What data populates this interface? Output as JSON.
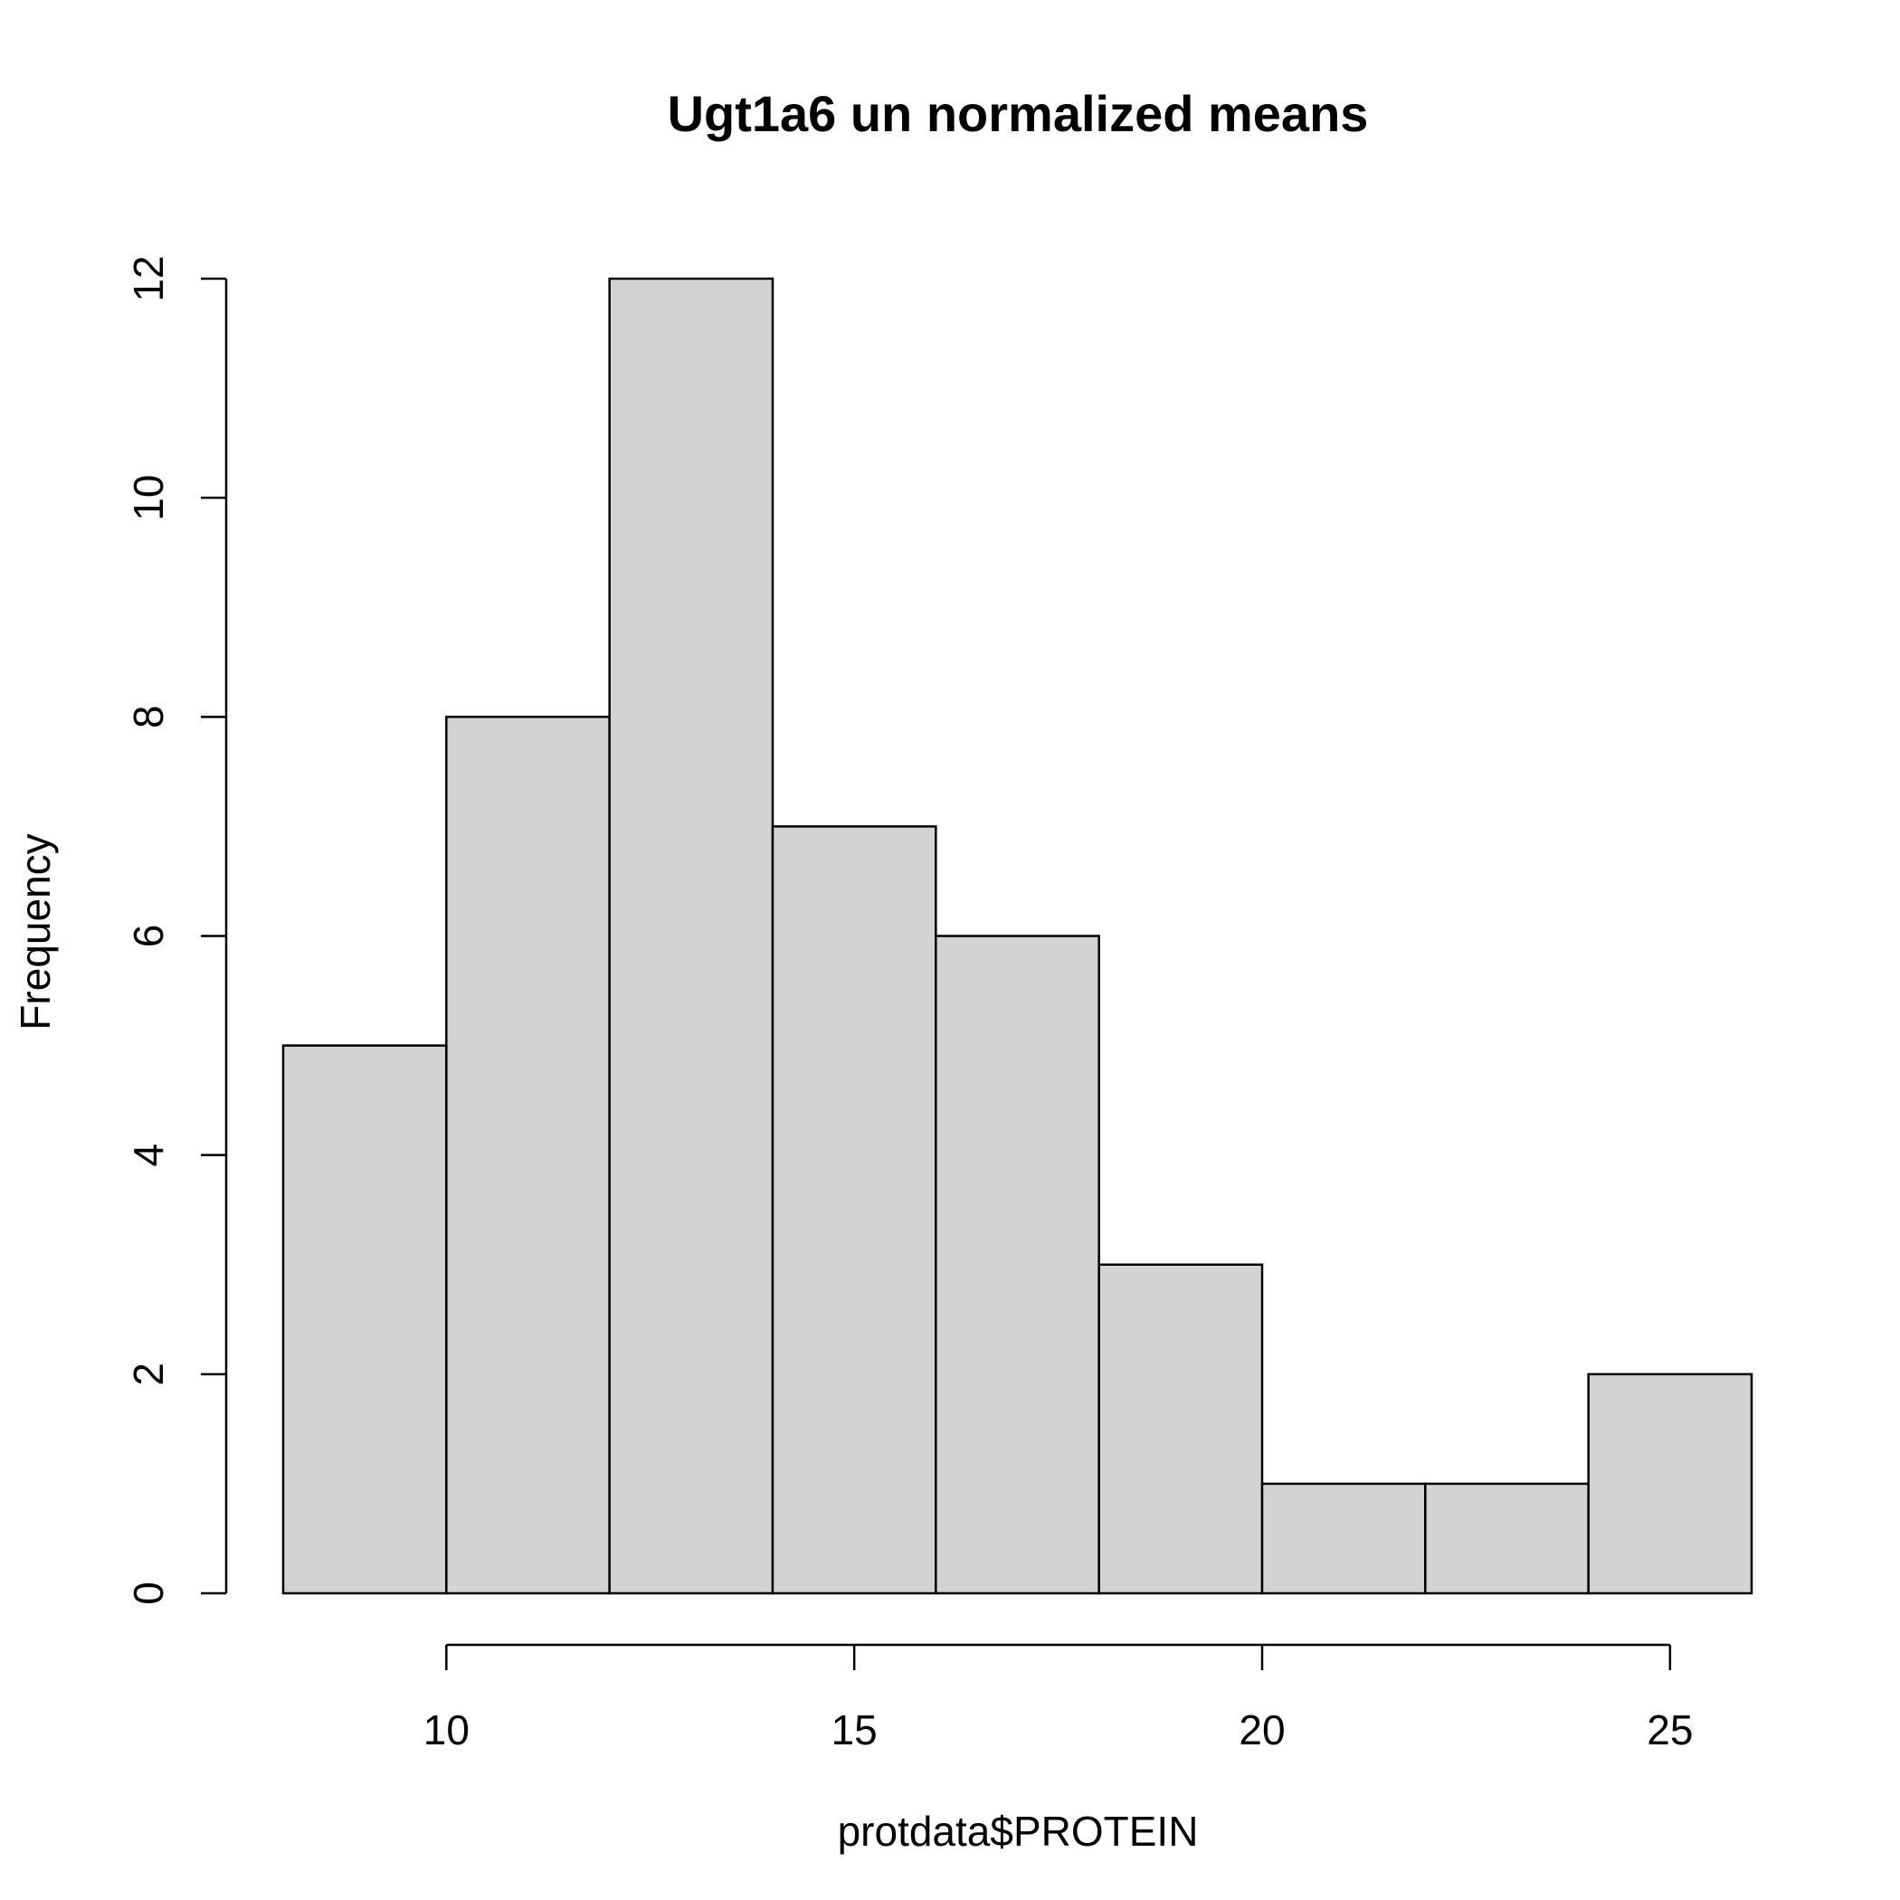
{
  "chart_data": {
    "type": "bar",
    "title": "Ugt1a6 un normalized means",
    "xlabel": "protdata$PROTEIN",
    "ylabel": "Frequency",
    "bin_edges": [
      8,
      10,
      12,
      14,
      16,
      18,
      20,
      22,
      24,
      26
    ],
    "values": [
      5,
      8,
      12,
      7,
      6,
      3,
      1,
      1,
      2
    ],
    "xlim": [
      8,
      26
    ],
    "ylim": [
      0,
      12
    ],
    "x_ticks": [
      10,
      15,
      20,
      25
    ],
    "y_ticks": [
      0,
      2,
      4,
      6,
      8,
      10,
      12
    ],
    "bar_color": "#d3d3d3",
    "grid": false,
    "legend": "none"
  }
}
